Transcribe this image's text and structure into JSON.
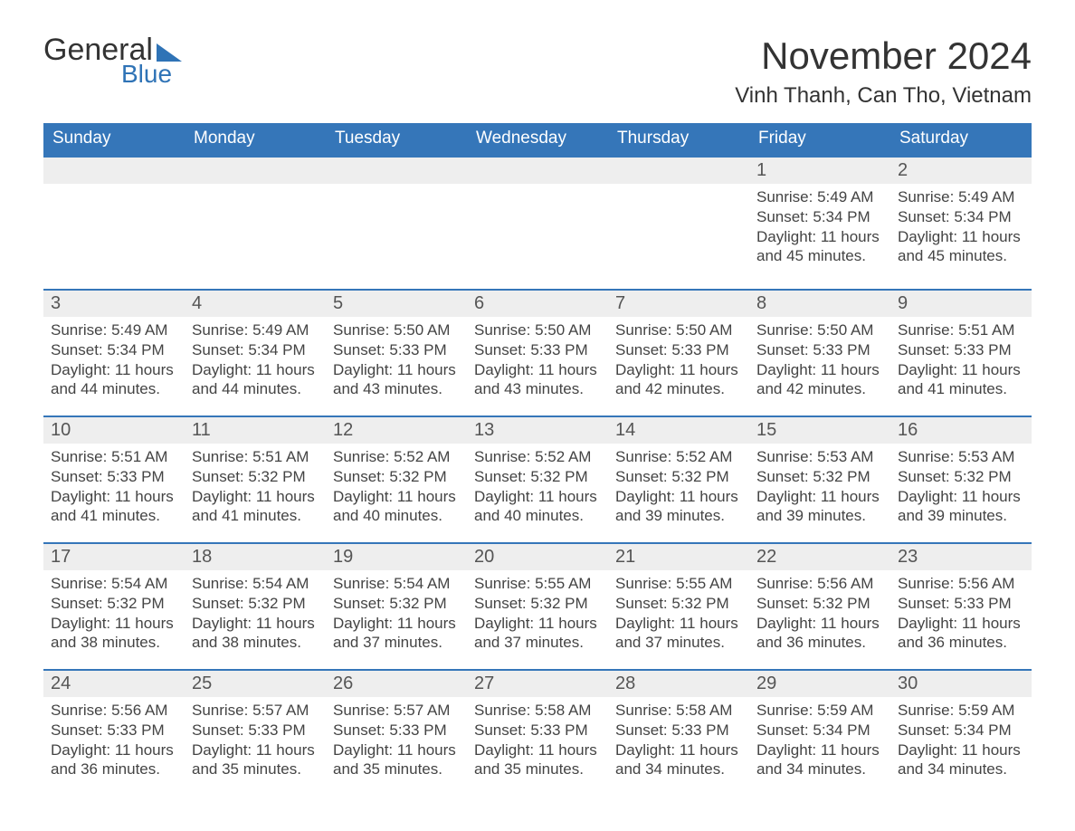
{
  "logo": {
    "word1": "General",
    "word2": "Blue",
    "accent_color": "#2f73b6"
  },
  "title": "November 2024",
  "location": "Vinh Thanh, Can Tho, Vietnam",
  "header_bg": "#3576b9",
  "header_fg": "#ffffff",
  "band_bg": "#eeeeee",
  "band_border": "#3576b9",
  "text_color": "#444444",
  "weekdays": [
    "Sunday",
    "Monday",
    "Tuesday",
    "Wednesday",
    "Thursday",
    "Friday",
    "Saturday"
  ],
  "labels": {
    "sunrise": "Sunrise: ",
    "sunset": "Sunset: ",
    "daylight": "Daylight: "
  },
  "weeks": [
    [
      null,
      null,
      null,
      null,
      null,
      {
        "n": "1",
        "sr": "5:49 AM",
        "ss": "5:34 PM",
        "dl": "11 hours and 45 minutes."
      },
      {
        "n": "2",
        "sr": "5:49 AM",
        "ss": "5:34 PM",
        "dl": "11 hours and 45 minutes."
      }
    ],
    [
      {
        "n": "3",
        "sr": "5:49 AM",
        "ss": "5:34 PM",
        "dl": "11 hours and 44 minutes."
      },
      {
        "n": "4",
        "sr": "5:49 AM",
        "ss": "5:34 PM",
        "dl": "11 hours and 44 minutes."
      },
      {
        "n": "5",
        "sr": "5:50 AM",
        "ss": "5:33 PM",
        "dl": "11 hours and 43 minutes."
      },
      {
        "n": "6",
        "sr": "5:50 AM",
        "ss": "5:33 PM",
        "dl": "11 hours and 43 minutes."
      },
      {
        "n": "7",
        "sr": "5:50 AM",
        "ss": "5:33 PM",
        "dl": "11 hours and 42 minutes."
      },
      {
        "n": "8",
        "sr": "5:50 AM",
        "ss": "5:33 PM",
        "dl": "11 hours and 42 minutes."
      },
      {
        "n": "9",
        "sr": "5:51 AM",
        "ss": "5:33 PM",
        "dl": "11 hours and 41 minutes."
      }
    ],
    [
      {
        "n": "10",
        "sr": "5:51 AM",
        "ss": "5:33 PM",
        "dl": "11 hours and 41 minutes."
      },
      {
        "n": "11",
        "sr": "5:51 AM",
        "ss": "5:32 PM",
        "dl": "11 hours and 41 minutes."
      },
      {
        "n": "12",
        "sr": "5:52 AM",
        "ss": "5:32 PM",
        "dl": "11 hours and 40 minutes."
      },
      {
        "n": "13",
        "sr": "5:52 AM",
        "ss": "5:32 PM",
        "dl": "11 hours and 40 minutes."
      },
      {
        "n": "14",
        "sr": "5:52 AM",
        "ss": "5:32 PM",
        "dl": "11 hours and 39 minutes."
      },
      {
        "n": "15",
        "sr": "5:53 AM",
        "ss": "5:32 PM",
        "dl": "11 hours and 39 minutes."
      },
      {
        "n": "16",
        "sr": "5:53 AM",
        "ss": "5:32 PM",
        "dl": "11 hours and 39 minutes."
      }
    ],
    [
      {
        "n": "17",
        "sr": "5:54 AM",
        "ss": "5:32 PM",
        "dl": "11 hours and 38 minutes."
      },
      {
        "n": "18",
        "sr": "5:54 AM",
        "ss": "5:32 PM",
        "dl": "11 hours and 38 minutes."
      },
      {
        "n": "19",
        "sr": "5:54 AM",
        "ss": "5:32 PM",
        "dl": "11 hours and 37 minutes."
      },
      {
        "n": "20",
        "sr": "5:55 AM",
        "ss": "5:32 PM",
        "dl": "11 hours and 37 minutes."
      },
      {
        "n": "21",
        "sr": "5:55 AM",
        "ss": "5:32 PM",
        "dl": "11 hours and 37 minutes."
      },
      {
        "n": "22",
        "sr": "5:56 AM",
        "ss": "5:32 PM",
        "dl": "11 hours and 36 minutes."
      },
      {
        "n": "23",
        "sr": "5:56 AM",
        "ss": "5:33 PM",
        "dl": "11 hours and 36 minutes."
      }
    ],
    [
      {
        "n": "24",
        "sr": "5:56 AM",
        "ss": "5:33 PM",
        "dl": "11 hours and 36 minutes."
      },
      {
        "n": "25",
        "sr": "5:57 AM",
        "ss": "5:33 PM",
        "dl": "11 hours and 35 minutes."
      },
      {
        "n": "26",
        "sr": "5:57 AM",
        "ss": "5:33 PM",
        "dl": "11 hours and 35 minutes."
      },
      {
        "n": "27",
        "sr": "5:58 AM",
        "ss": "5:33 PM",
        "dl": "11 hours and 35 minutes."
      },
      {
        "n": "28",
        "sr": "5:58 AM",
        "ss": "5:33 PM",
        "dl": "11 hours and 34 minutes."
      },
      {
        "n": "29",
        "sr": "5:59 AM",
        "ss": "5:34 PM",
        "dl": "11 hours and 34 minutes."
      },
      {
        "n": "30",
        "sr": "5:59 AM",
        "ss": "5:34 PM",
        "dl": "11 hours and 34 minutes."
      }
    ]
  ]
}
